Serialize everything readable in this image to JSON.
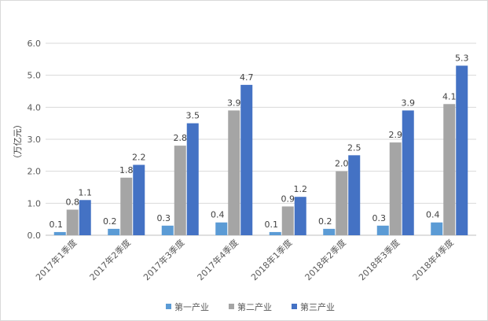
{
  "chart_data": {
    "type": "bar",
    "ylabel": "（万亿元）",
    "ylim": [
      0,
      6
    ],
    "yticks": [
      "0.0",
      "1.0",
      "2.0",
      "3.0",
      "4.0",
      "5.0",
      "6.0"
    ],
    "grid": true,
    "legend_position": "bottom",
    "categories": [
      "2017年1季度",
      "2017年2季度",
      "2017年3季度",
      "2017年4季度",
      "2018年1季度",
      "2018年2季度",
      "2018年3季度",
      "2018年4季度"
    ],
    "series": [
      {
        "name": "第一产业",
        "color": "#5b9bd5",
        "values": [
          0.1,
          0.2,
          0.3,
          0.4,
          0.1,
          0.2,
          0.3,
          0.4
        ],
        "labels": [
          "0.1",
          "0.2",
          "0.3",
          "0.4",
          "0.1",
          "0.2",
          "0.3",
          "0.4"
        ]
      },
      {
        "name": "第二产业",
        "color": "#a5a5a5",
        "values": [
          0.8,
          1.8,
          2.8,
          3.9,
          0.9,
          2.0,
          2.9,
          4.1
        ],
        "labels": [
          "0.8",
          "1.8",
          "2.8",
          "3.9",
          "0.9",
          "2.0",
          "2.9",
          "4.1"
        ]
      },
      {
        "name": "第三产业",
        "color": "#4472c4",
        "values": [
          1.1,
          2.2,
          3.5,
          4.7,
          1.2,
          2.5,
          3.9,
          5.3
        ],
        "labels": [
          "1.1",
          "2.2",
          "3.5",
          "4.7",
          "1.2",
          "2.5",
          "3.9",
          "5.3"
        ]
      }
    ]
  }
}
